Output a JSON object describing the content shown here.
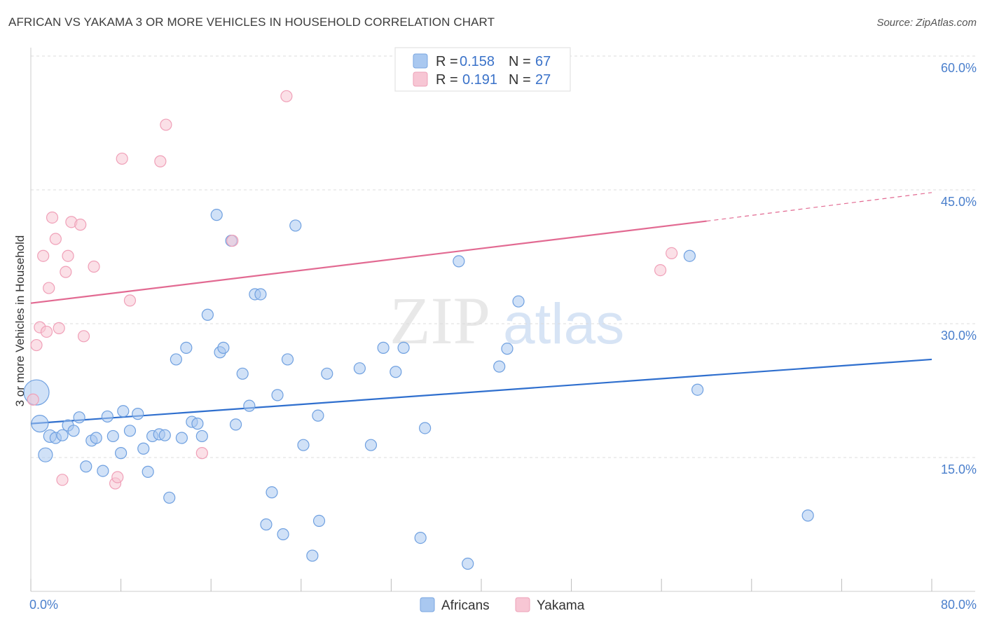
{
  "header": {
    "title": "AFRICAN VS YAKAMA 3 OR MORE VEHICLES IN HOUSEHOLD CORRELATION CHART",
    "source": "Source: ZipAtlas.com"
  },
  "watermark": {
    "part1": "ZIP",
    "part2": "atlas"
  },
  "legend": {
    "rows": [
      {
        "r_label": "R =",
        "r_value": "0.158",
        "n_label": "N =",
        "n_value": "67",
        "color": "#a9c8f0"
      },
      {
        "r_label": "R =",
        "r_value": "0.191",
        "n_label": "N =",
        "n_value": "27",
        "color": "#f7b8c9"
      }
    ]
  },
  "bottom_legend": {
    "items": [
      {
        "label": "Africans",
        "color": "#a9c8f0"
      },
      {
        "label": "Yakama",
        "color": "#f7b8c9"
      }
    ]
  },
  "chart_data": {
    "type": "scatter",
    "title": "AFRICAN VS YAKAMA 3 OR MORE VEHICLES IN HOUSEHOLD CORRELATION CHART",
    "xlabel": "",
    "ylabel": "3 or more Vehicles in Household",
    "xlim": [
      0,
      80
    ],
    "ylim": [
      0,
      60
    ],
    "y_ticks": [
      15,
      30,
      45,
      60
    ],
    "y_tick_labels": [
      "15.0%",
      "30.0%",
      "45.0%",
      "60.0%"
    ],
    "x_tick_labels": [
      "0.0%",
      "80.0%"
    ],
    "grid": "horizontal dashed",
    "legend_position": "top-center",
    "series": [
      {
        "name": "Africans",
        "color": "#6fa0e0",
        "fill": "#a9c8f0",
        "trend": {
          "x": [
            0,
            80
          ],
          "y": [
            18.8,
            26.0
          ],
          "style": "solid"
        },
        "points": [
          [
            0.5,
            22.3,
            18
          ],
          [
            0.8,
            18.8,
            12
          ],
          [
            1.3,
            15.3,
            10
          ],
          [
            1.7,
            17.4,
            9
          ],
          [
            2.2,
            17.2,
            8
          ],
          [
            2.8,
            17.5,
            8
          ],
          [
            3.3,
            18.6,
            8
          ],
          [
            3.8,
            18.0,
            8
          ],
          [
            4.3,
            19.5,
            8
          ],
          [
            4.9,
            14.0,
            8
          ],
          [
            5.4,
            16.9,
            8
          ],
          [
            5.8,
            17.2,
            8
          ],
          [
            6.4,
            13.5,
            8
          ],
          [
            6.8,
            19.6,
            8
          ],
          [
            7.3,
            17.4,
            8
          ],
          [
            8.0,
            15.5,
            8
          ],
          [
            8.2,
            20.2,
            8
          ],
          [
            8.8,
            18.0,
            8
          ],
          [
            9.5,
            19.9,
            8
          ],
          [
            10.0,
            16.0,
            8
          ],
          [
            10.4,
            13.4,
            8
          ],
          [
            10.8,
            17.4,
            8
          ],
          [
            11.4,
            17.6,
            8
          ],
          [
            11.9,
            17.5,
            8
          ],
          [
            12.3,
            10.5,
            8
          ],
          [
            12.9,
            26.0,
            8
          ],
          [
            13.4,
            17.2,
            8
          ],
          [
            13.8,
            27.3,
            8
          ],
          [
            14.3,
            19.0,
            8
          ],
          [
            14.8,
            18.8,
            8
          ],
          [
            15.2,
            17.4,
            8
          ],
          [
            15.7,
            31.0,
            8
          ],
          [
            16.5,
            42.2,
            8
          ],
          [
            16.8,
            26.8,
            8
          ],
          [
            17.1,
            27.3,
            8
          ],
          [
            17.8,
            39.3,
            8
          ],
          [
            18.2,
            18.7,
            8
          ],
          [
            18.8,
            24.4,
            8
          ],
          [
            19.4,
            20.8,
            8
          ],
          [
            19.9,
            33.3,
            8
          ],
          [
            20.4,
            33.3,
            8
          ],
          [
            20.9,
            7.5,
            8
          ],
          [
            21.4,
            11.1,
            8
          ],
          [
            21.9,
            22.0,
            8
          ],
          [
            22.4,
            6.4,
            8
          ],
          [
            22.8,
            26.0,
            8
          ],
          [
            23.5,
            41.0,
            8
          ],
          [
            24.2,
            16.4,
            8
          ],
          [
            25.0,
            4.0,
            8
          ],
          [
            25.5,
            19.7,
            8
          ],
          [
            25.6,
            7.9,
            8
          ],
          [
            26.3,
            24.4,
            8
          ],
          [
            29.2,
            25.0,
            8
          ],
          [
            30.2,
            16.4,
            8
          ],
          [
            31.3,
            27.3,
            8
          ],
          [
            32.4,
            24.6,
            8
          ],
          [
            33.1,
            27.3,
            8
          ],
          [
            34.6,
            6.0,
            8
          ],
          [
            35.0,
            18.3,
            8
          ],
          [
            38.0,
            37.0,
            8
          ],
          [
            38.8,
            3.1,
            8
          ],
          [
            41.6,
            25.2,
            8
          ],
          [
            42.3,
            27.2,
            8
          ],
          [
            43.3,
            32.5,
            8
          ],
          [
            58.5,
            37.6,
            8
          ],
          [
            59.2,
            22.6,
            8
          ],
          [
            69.0,
            8.5,
            8
          ]
        ]
      },
      {
        "name": "Yakama",
        "color": "#f0a0b8",
        "fill": "#f7c6d4",
        "trend": {
          "x": [
            0,
            60
          ],
          "y": [
            32.3,
            41.5
          ],
          "style": "solid",
          "dashed_to": [
            80,
            44.7
          ]
        },
        "points": [
          [
            0.2,
            21.5,
            8
          ],
          [
            0.5,
            27.6,
            8
          ],
          [
            0.8,
            29.6,
            8
          ],
          [
            1.1,
            37.6,
            8
          ],
          [
            1.4,
            29.1,
            8
          ],
          [
            1.6,
            34.0,
            8
          ],
          [
            1.9,
            41.9,
            8
          ],
          [
            2.2,
            39.5,
            8
          ],
          [
            2.5,
            29.5,
            8
          ],
          [
            2.8,
            12.5,
            8
          ],
          [
            3.1,
            35.8,
            8
          ],
          [
            3.3,
            37.6,
            8
          ],
          [
            3.6,
            41.4,
            8
          ],
          [
            4.4,
            41.1,
            8
          ],
          [
            4.7,
            28.6,
            8
          ],
          [
            5.6,
            36.4,
            8
          ],
          [
            7.5,
            12.1,
            8
          ],
          [
            7.7,
            12.8,
            8
          ],
          [
            8.1,
            48.5,
            8
          ],
          [
            8.8,
            32.6,
            8
          ],
          [
            11.5,
            48.2,
            8
          ],
          [
            12.0,
            52.3,
            8
          ],
          [
            15.2,
            15.5,
            8
          ],
          [
            17.9,
            39.3,
            8
          ],
          [
            22.7,
            55.5,
            8
          ],
          [
            55.9,
            36.0,
            8
          ],
          [
            56.9,
            37.9,
            8
          ]
        ]
      }
    ]
  }
}
